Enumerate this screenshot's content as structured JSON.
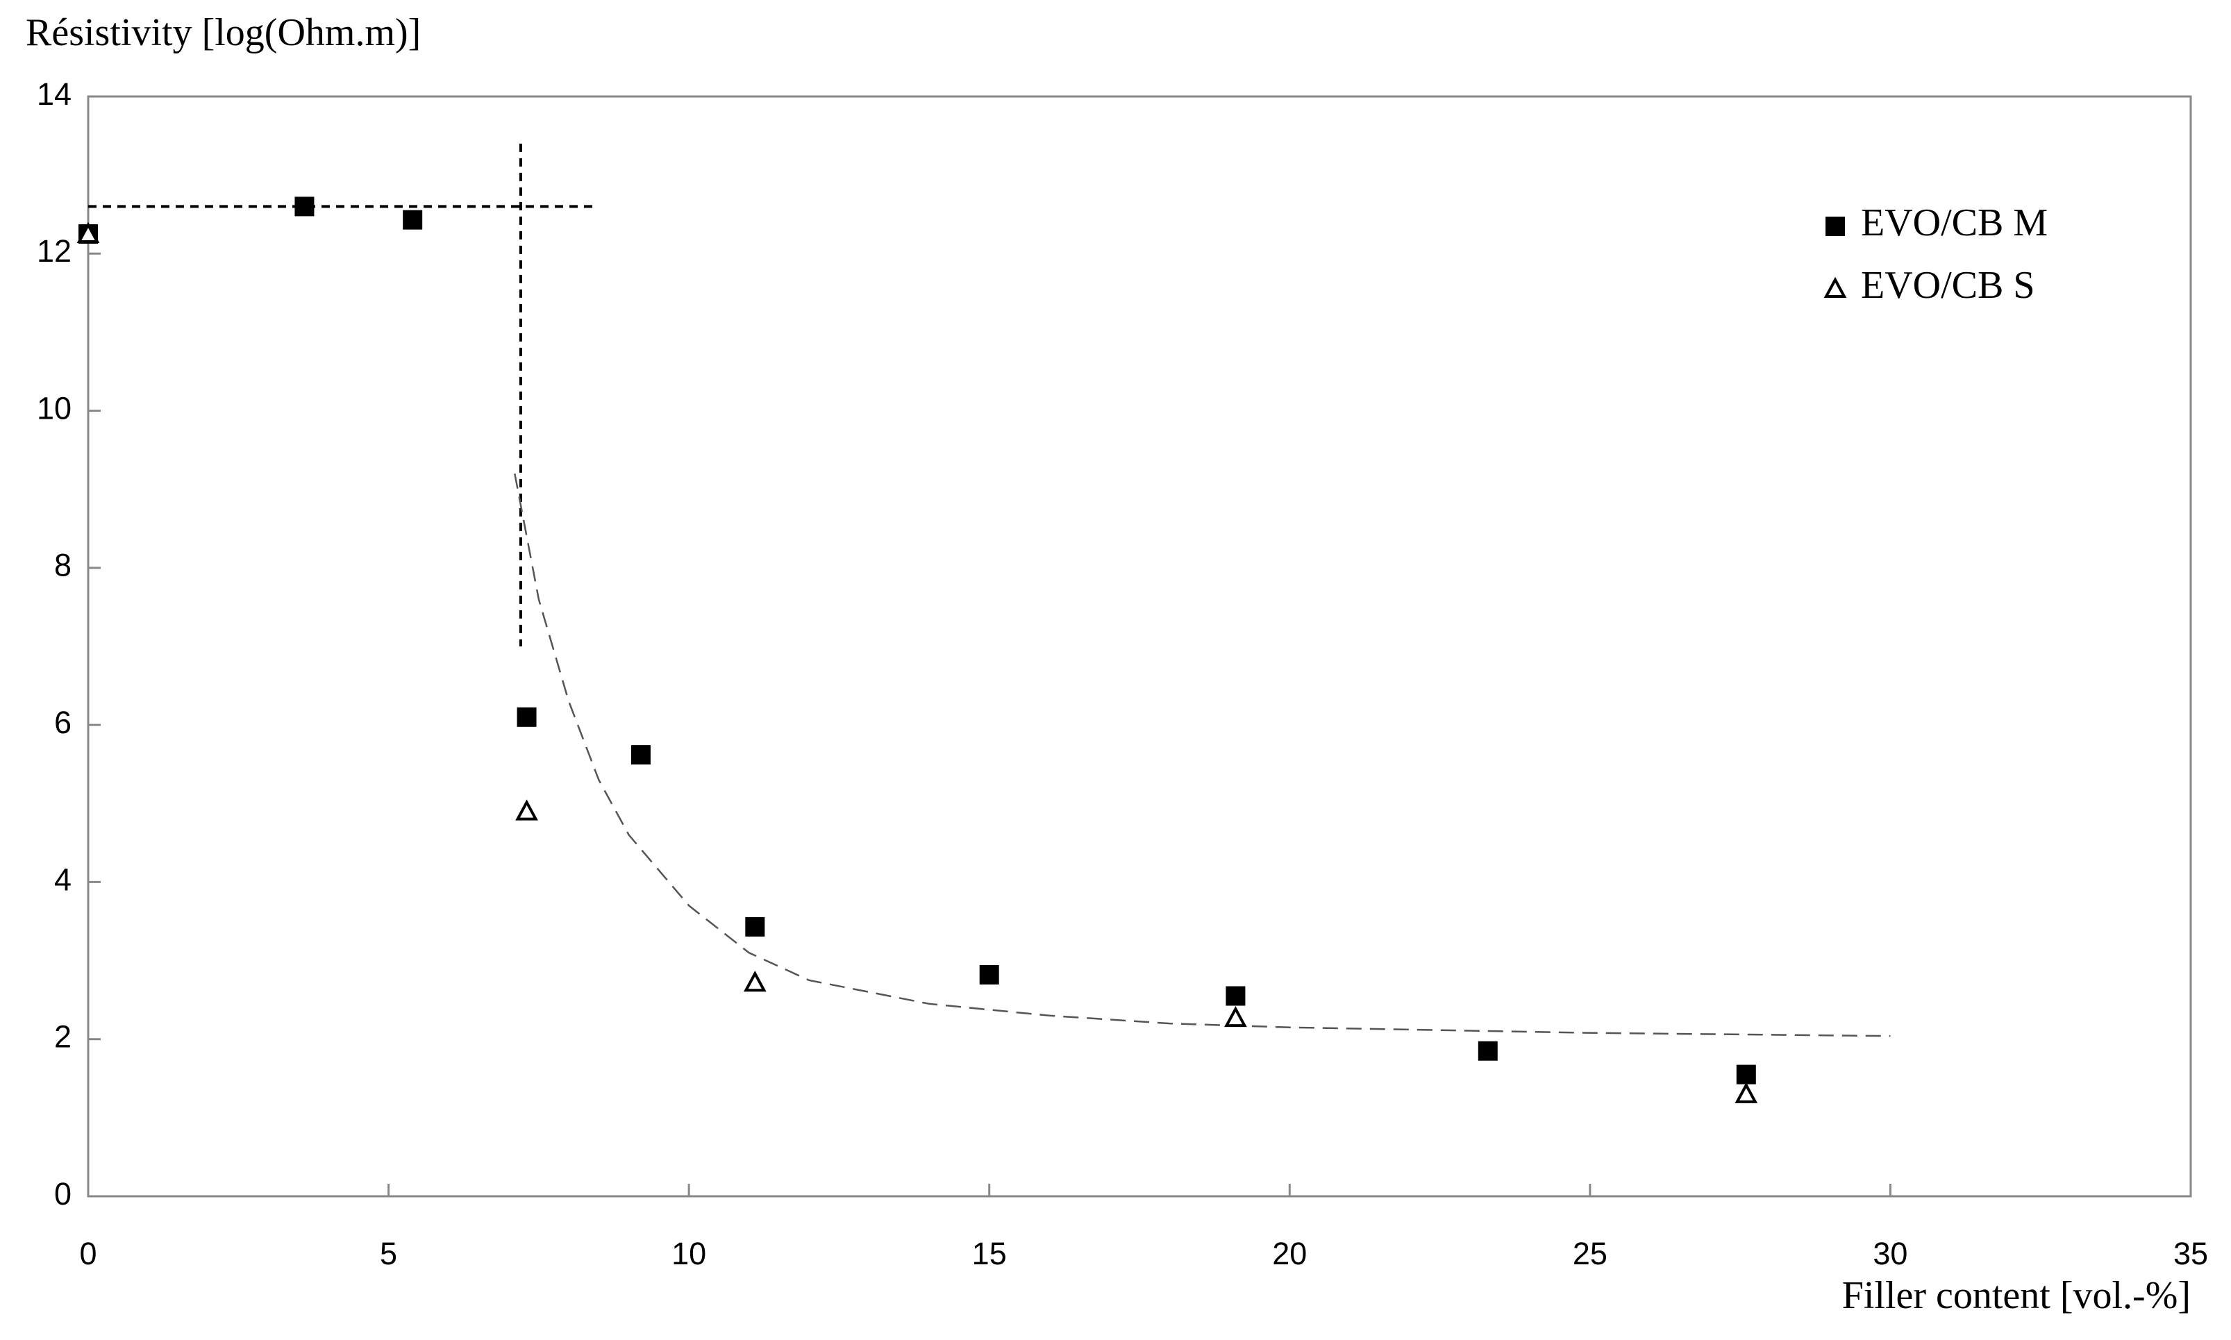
{
  "chart_data": {
    "type": "scatter",
    "y_label": "Résistivity [log(Ohm.m)]",
    "x_label": "Filler content [vol.-%]",
    "xlim": [
      0,
      35
    ],
    "xticks": [
      0,
      5,
      10,
      15,
      20,
      25,
      30,
      35
    ],
    "ylim": [
      0,
      14
    ],
    "yticks": [
      0,
      2,
      4,
      6,
      8,
      10,
      12,
      14
    ],
    "grid": false,
    "legend": "upper right",
    "series": [
      {
        "name": "EVO/CB M",
        "marker": "square",
        "color": "#000000",
        "x": [
          0,
          3.6,
          5.4,
          7.3,
          9.2,
          11.1,
          15.0,
          19.1,
          23.3,
          27.6
        ],
        "values": [
          12.25,
          12.6,
          12.43,
          6.1,
          5.62,
          3.43,
          2.82,
          2.55,
          1.85,
          1.55
        ]
      },
      {
        "name": "EVO/CB S",
        "marker": "triangle",
        "color": "#000000",
        "x": [
          0,
          7.3,
          11.1,
          19.1,
          27.6
        ],
        "values": [
          12.25,
          4.9,
          2.72,
          2.27,
          1.3
        ]
      }
    ],
    "fit_curve": {
      "color": "#555555",
      "x": [
        7.1,
        7.5,
        8,
        8.5,
        9,
        10,
        11,
        12,
        14,
        16,
        18,
        20,
        25,
        30
      ],
      "values": [
        9.2,
        7.6,
        6.3,
        5.3,
        4.6,
        3.7,
        3.1,
        2.75,
        2.45,
        2.3,
        2.2,
        2.15,
        2.08,
        2.04
      ]
    },
    "reference_lines": [
      {
        "x": [
          0,
          8.4
        ],
        "values": [
          12.6,
          12.6
        ]
      },
      {
        "x": [
          7.2,
          7.2
        ],
        "values": [
          13.4,
          7.0
        ]
      }
    ]
  }
}
